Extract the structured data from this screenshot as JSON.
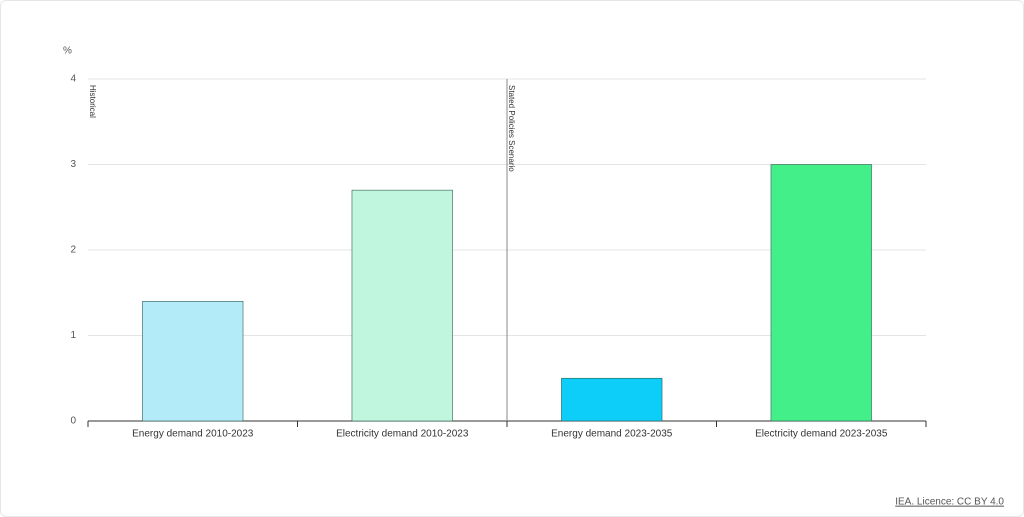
{
  "chart_data": {
    "type": "bar",
    "y_label": "%",
    "categories": [
      "Energy demand 2010-2023",
      "Electricity demand 2010-2023",
      "Energy demand 2023-2035",
      "Electricity demand 2023-2035"
    ],
    "values": [
      1.4,
      2.7,
      0.5,
      3.0
    ],
    "colors": [
      "#b3ecf8",
      "#c0f5de",
      "#0dcdf9",
      "#43ef89"
    ],
    "ylim": [
      0,
      4
    ],
    "yticks": [
      0,
      1,
      2,
      3,
      4
    ],
    "grid": true,
    "annotations": [
      {
        "text": "Historical",
        "category": 0
      },
      {
        "text": "Stated Policies Scenario",
        "category": 2
      }
    ],
    "source": "IEA. Licence: CC BY 4.0"
  }
}
